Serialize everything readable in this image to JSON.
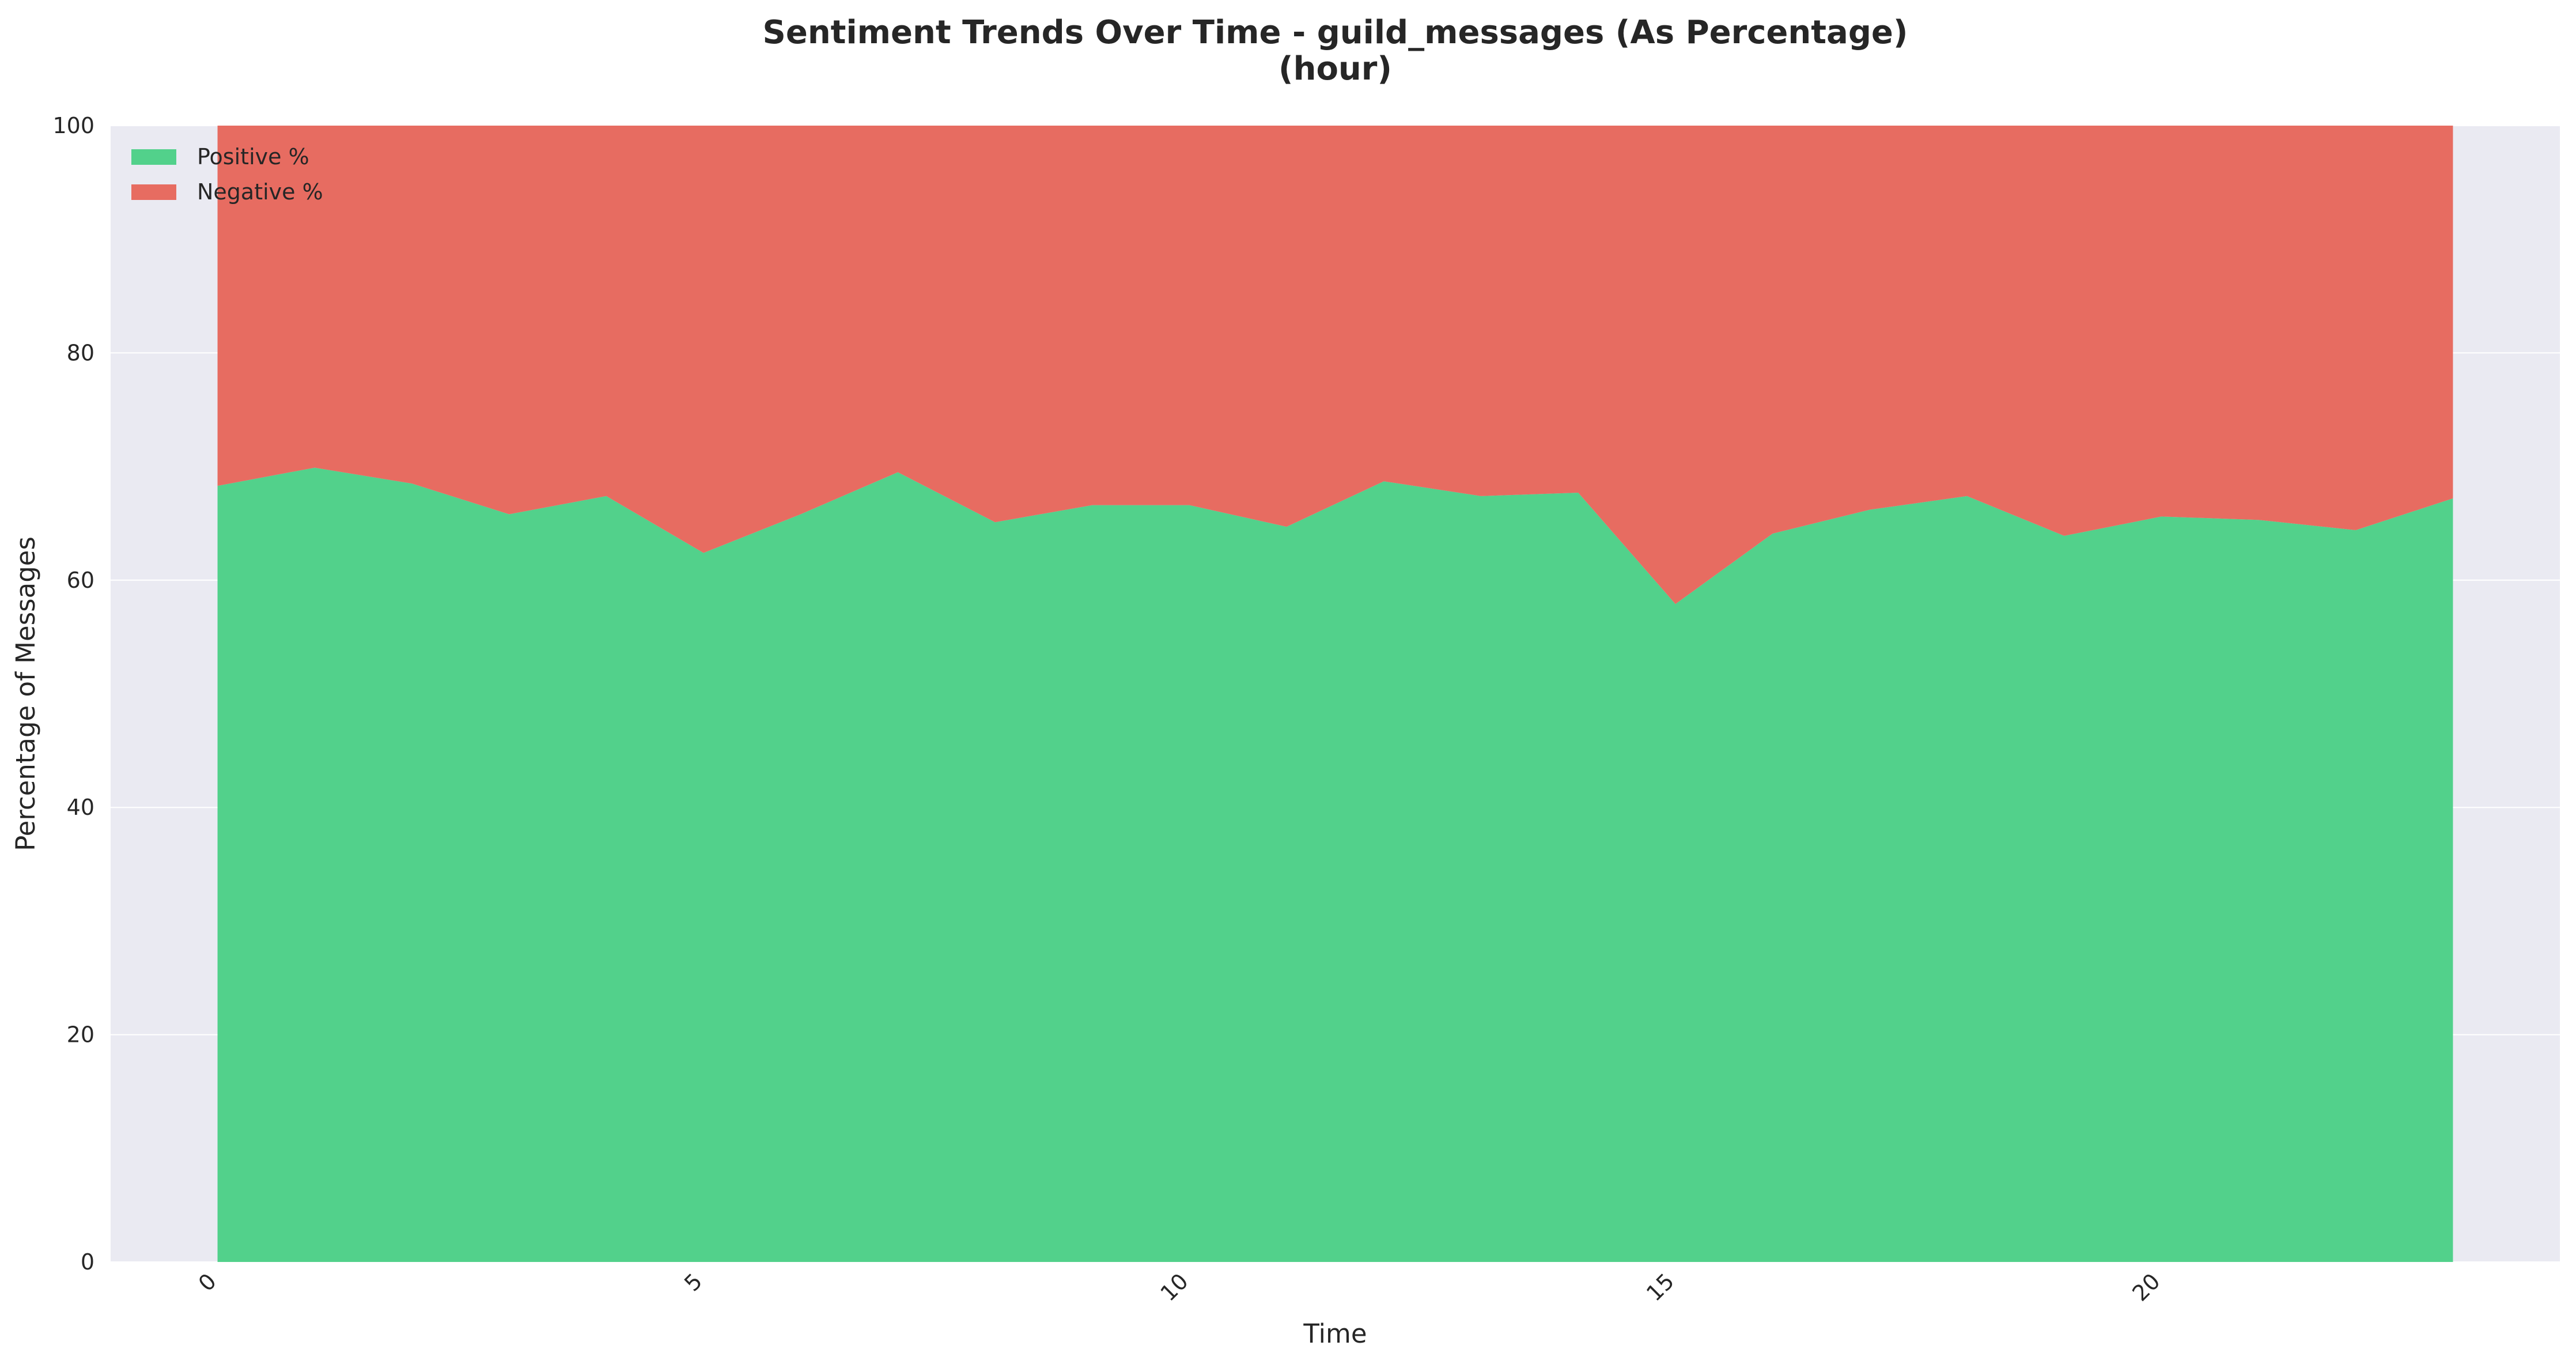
{
  "colors": {
    "positive": "#52d18b",
    "negative": "#e76c61",
    "plot_background": "#eaeaf2",
    "gridline": "#ffffff",
    "text": "#262626"
  },
  "chart_data": {
    "type": "area",
    "stacked": true,
    "title_line1": "Sentiment Trends Over Time - guild_messages (As Percentage)",
    "title_line2": "(hour)",
    "xlabel": "Time",
    "ylabel": "Percentage of Messages",
    "x": [
      0,
      1,
      2,
      3,
      4,
      5,
      6,
      7,
      8,
      9,
      10,
      11,
      12,
      13,
      14,
      15,
      16,
      17,
      18,
      19,
      20,
      21,
      22,
      23
    ],
    "xlim": [
      -1.1,
      24.1
    ],
    "ylim": [
      0,
      100
    ],
    "x_ticks": [
      0,
      5,
      10,
      15,
      20
    ],
    "x_tick_labels": [
      "0",
      "5",
      "10",
      "15",
      "20"
    ],
    "y_ticks": [
      0,
      20,
      40,
      60,
      80,
      100
    ],
    "y_tick_labels": [
      "0",
      "20",
      "40",
      "60",
      "80",
      "100"
    ],
    "x_tick_rotation": 45,
    "grid": true,
    "legend_position": "upper-left",
    "series": [
      {
        "name": "Positive %",
        "color_key": "positive",
        "values": [
          68.3,
          69.9,
          68.5,
          65.8,
          67.4,
          62.4,
          65.8,
          69.5,
          65.1,
          66.6,
          66.6,
          64.7,
          68.7,
          67.4,
          67.7,
          57.9,
          64.1,
          66.2,
          67.4,
          63.9,
          65.6,
          65.3,
          64.4,
          67.2
        ]
      },
      {
        "name": "Negative %",
        "color_key": "negative",
        "values": [
          31.7,
          30.1,
          31.5,
          34.2,
          32.6,
          37.6,
          34.2,
          30.5,
          34.9,
          33.4,
          33.4,
          35.3,
          31.3,
          32.6,
          32.3,
          42.1,
          35.9,
          33.8,
          32.6,
          36.1,
          34.4,
          34.7,
          35.6,
          32.8
        ]
      }
    ]
  }
}
